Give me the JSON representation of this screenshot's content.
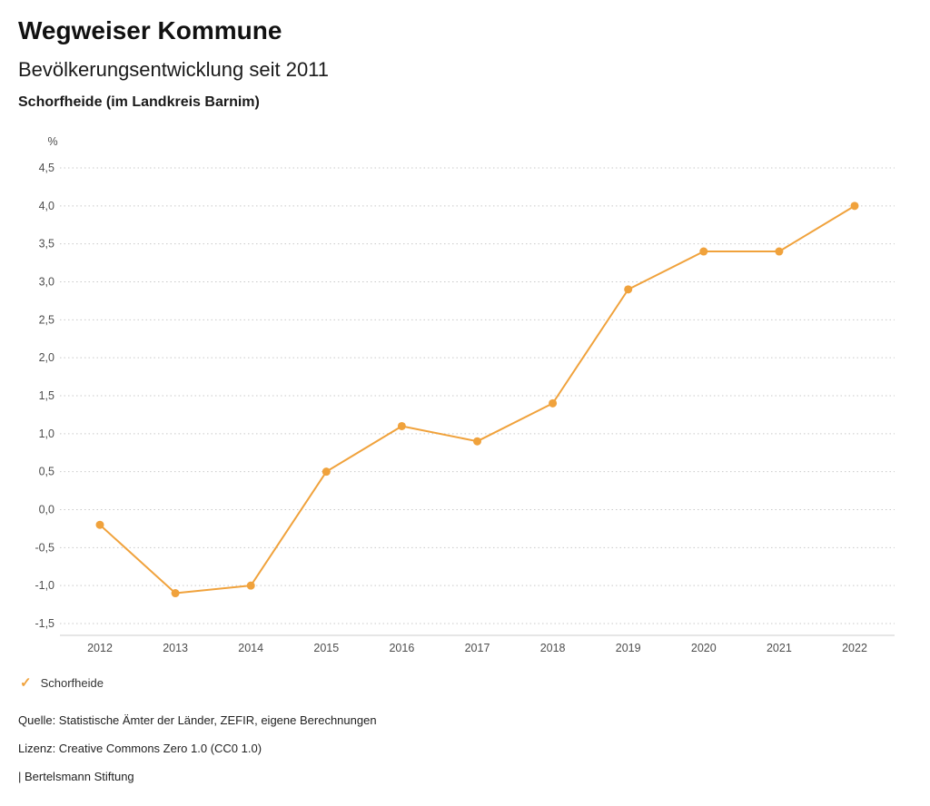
{
  "header": {
    "title": "Wegweiser Kommune",
    "subtitle": "Bevölkerungsentwicklung seit 2011",
    "region": "Schorfheide (im Landkreis Barnim)"
  },
  "chart_data": {
    "type": "line",
    "title": "Bevölkerungsentwicklung seit 2011",
    "unit_label": "%",
    "categories": [
      "2012",
      "2013",
      "2014",
      "2015",
      "2016",
      "2017",
      "2018",
      "2019",
      "2020",
      "2021",
      "2022"
    ],
    "series": [
      {
        "name": "Schorfheide",
        "values": [
          -0.2,
          -1.1,
          -1.0,
          0.5,
          1.1,
          0.9,
          1.4,
          2.9,
          3.4,
          3.4,
          4.0
        ]
      }
    ],
    "ylim": [
      -1.5,
      4.5
    ],
    "ytick_step": 0.5,
    "grid": "horizontal-dotted",
    "legend_position": "bottom-left",
    "line_color": "#F0A23C"
  },
  "legend": {
    "items": [
      {
        "label": "Schorfheide",
        "check_glyph": "✓",
        "color": "#F0A23C"
      }
    ]
  },
  "footer": {
    "source": "Quelle: Statistische Ämter der Länder, ZEFIR, eigene Berechnungen",
    "license": "Lizenz: Creative Commons Zero 1.0 (CC0 1.0)",
    "brand": "| Bertelsmann Stiftung"
  }
}
